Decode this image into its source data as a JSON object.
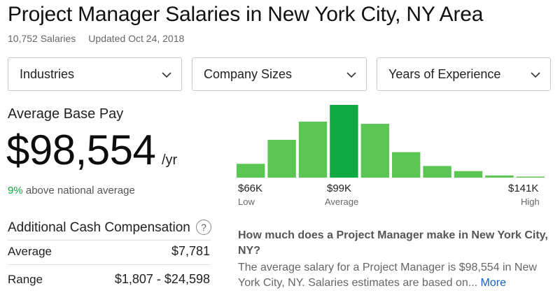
{
  "header": {
    "title": "Project Manager Salaries in New York City, NY Area",
    "salary_count": "10,752 Salaries",
    "updated": "Updated Oct 24, 2018"
  },
  "filters": [
    {
      "label": "Industries"
    },
    {
      "label": "Company Sizes"
    },
    {
      "label": "Years of Experience"
    }
  ],
  "summary": {
    "avg_label": "Average Base Pay",
    "amount": "$98,554",
    "period": "/yr",
    "comparison_pct": "9%",
    "comparison_text": " above national average"
  },
  "additional": {
    "title": "Additional Cash Compensation",
    "help_glyph": "?",
    "rows": [
      {
        "label": "Average",
        "value": "$7,781"
      },
      {
        "label": "Range",
        "value": "$1,807 - $24,598"
      }
    ]
  },
  "chart_data": {
    "type": "bar",
    "values": [
      19,
      52,
      77,
      100,
      74,
      35,
      16,
      9,
      3,
      1
    ],
    "highlight_index": 3,
    "colors": {
      "normal": "#5cc655",
      "highlight": "#0caa41"
    },
    "ticks": [
      {
        "value": "$66K",
        "sub": "Low"
      },
      {
        "value": "$99K",
        "sub": "Average"
      },
      {
        "value": "$141K",
        "sub": "High"
      }
    ]
  },
  "faq": {
    "question": "How much does a Project Manager make in New York City, NY?",
    "answer": "The average salary for a Project Manager is $98,554 in New York City, NY. Salaries estimates are based on... ",
    "more_label": "More"
  },
  "icons": {
    "dropdown": "chevron-down-icon",
    "help": "question-circle-icon"
  }
}
